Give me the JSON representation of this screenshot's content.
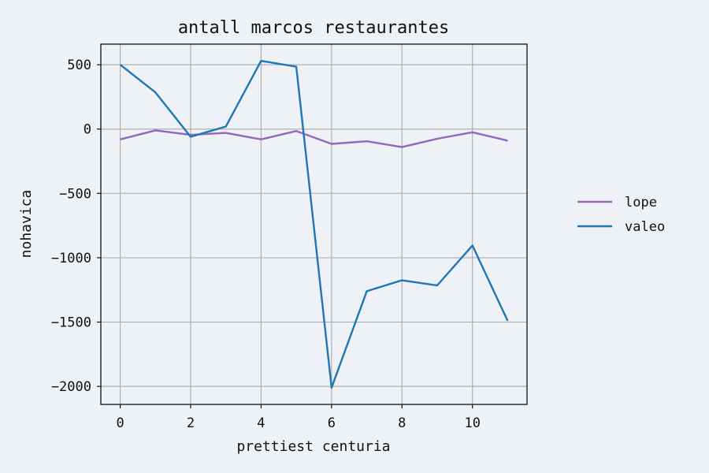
{
  "chart_data": {
    "type": "line",
    "title": "antall marcos restaurantes",
    "xlabel": "prettiest centuria",
    "ylabel": "nohavica",
    "xlim": [
      -0.55,
      11.55
    ],
    "ylim": [
      -2140,
      660
    ],
    "xticks": [
      0,
      2,
      4,
      6,
      8,
      10
    ],
    "yticks": [
      500,
      0,
      -500,
      -1000,
      -1500,
      -2000
    ],
    "xtick_labels": [
      "0",
      "2",
      "4",
      "6",
      "8",
      "10"
    ],
    "ytick_labels": [
      "500",
      "0",
      "−500",
      "−1000",
      "−1500",
      "−2000"
    ],
    "grid": true,
    "legend_position": "right",
    "x": [
      0,
      1,
      2,
      3,
      4,
      5,
      6,
      7,
      8,
      9,
      10,
      11
    ],
    "series": [
      {
        "name": "lope",
        "color": "#9467bd",
        "values": [
          -80,
          -10,
          -45,
          -30,
          -80,
          -15,
          -115,
          -95,
          -140,
          -75,
          -25,
          -90
        ]
      },
      {
        "name": "valeo",
        "color": "#1f77b4",
        "values": [
          500,
          285,
          -60,
          20,
          530,
          485,
          -2010,
          -1260,
          -1175,
          -1215,
          -905,
          -1490
        ]
      }
    ]
  }
}
